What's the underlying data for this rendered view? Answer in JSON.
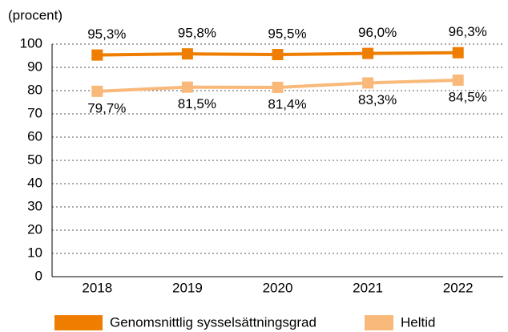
{
  "chart_data": {
    "type": "line",
    "y_label": "(procent)",
    "categories": [
      "2018",
      "2019",
      "2020",
      "2021",
      "2022"
    ],
    "series": [
      {
        "name": "Genomsnittlig sysselsättningsgrad",
        "color": "#ee7d00",
        "values": [
          95.3,
          95.8,
          95.5,
          96.0,
          96.3
        ],
        "value_labels": [
          "95,3%",
          "95,8%",
          "95,5%",
          "96,0%",
          "96,3%"
        ],
        "label_position": "above"
      },
      {
        "name": "Heltid",
        "color": "#f9b97a",
        "values": [
          79.7,
          81.5,
          81.4,
          83.3,
          84.5
        ],
        "value_labels": [
          "79,7%",
          "81,5%",
          "81,4%",
          "83,3%",
          "84,5%"
        ],
        "label_position": "below"
      }
    ],
    "ylim": [
      0,
      100
    ],
    "yticks": [
      0,
      10,
      20,
      30,
      40,
      50,
      60,
      70,
      80,
      90,
      100
    ],
    "grid": true,
    "legend": "bottom"
  }
}
